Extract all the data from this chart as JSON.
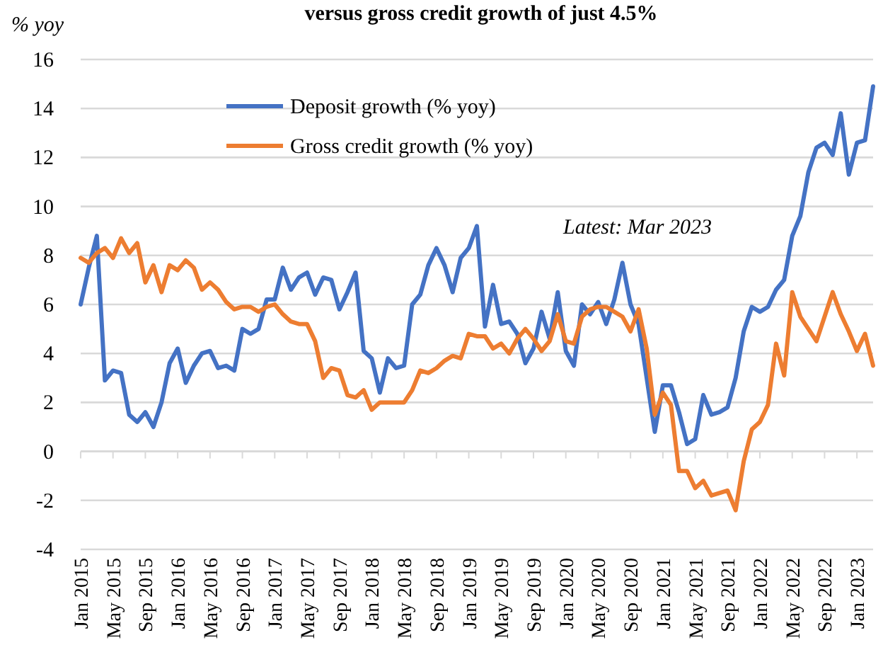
{
  "chart_data": {
    "type": "line",
    "title": "versus gross credit growth of just 4.5%",
    "ylabel": "% yoy",
    "categories": [
      "Jan 2015",
      null,
      null,
      null,
      "May 2015",
      null,
      null,
      null,
      "Sep 2015",
      null,
      null,
      null,
      "Jan 2016",
      null,
      null,
      null,
      "May 2016",
      null,
      null,
      null,
      "Sep 2016",
      null,
      null,
      null,
      "Jan 2017",
      null,
      null,
      null,
      "May 2017",
      null,
      null,
      null,
      "Sep 2017",
      null,
      null,
      null,
      "Jan 2018",
      null,
      null,
      null,
      "May 2018",
      null,
      null,
      null,
      "Sep 2018",
      null,
      null,
      null,
      "Jan 2019",
      null,
      null,
      null,
      "May 2019",
      null,
      null,
      null,
      "Sep 2019",
      null,
      null,
      null,
      "Jan 2020",
      null,
      null,
      null,
      "May 2020",
      null,
      null,
      null,
      "Sep 2020",
      null,
      null,
      null,
      "Jan 2021",
      null,
      null,
      null,
      "May 2021",
      null,
      null,
      null,
      "Sep 2021",
      null,
      null,
      null,
      "Jan 2022",
      null,
      null,
      null,
      "May 2022",
      null,
      null,
      null,
      "Sep 2022",
      null,
      null,
      null,
      "Jan 2023",
      null,
      null
    ],
    "series": [
      {
        "name": "Deposit growth (% yoy)",
        "color": "#4472c4",
        "values": [
          6.0,
          7.5,
          8.8,
          2.9,
          3.3,
          3.2,
          1.5,
          1.2,
          1.6,
          1.0,
          2.0,
          3.6,
          4.2,
          2.8,
          3.5,
          4.0,
          4.1,
          3.4,
          3.5,
          3.3,
          5.0,
          4.8,
          5.0,
          6.2,
          6.2,
          7.5,
          6.6,
          7.1,
          7.3,
          6.4,
          7.1,
          7.0,
          5.8,
          6.5,
          7.3,
          4.1,
          3.8,
          2.4,
          3.8,
          3.4,
          3.5,
          6.0,
          6.4,
          7.6,
          8.3,
          7.6,
          6.5,
          7.9,
          8.3,
          9.2,
          5.1,
          6.8,
          5.2,
          5.3,
          4.8,
          3.6,
          4.2,
          5.7,
          4.6,
          6.5,
          4.1,
          3.5,
          6.0,
          5.6,
          6.1,
          5.2,
          6.2,
          7.7,
          6.0,
          5.2,
          3.0,
          0.8,
          2.7,
          2.7,
          1.6,
          0.3,
          0.5,
          2.3,
          1.5,
          1.6,
          1.8,
          3.0,
          4.9,
          5.9,
          5.7,
          5.9,
          6.6,
          7.0,
          8.8,
          9.6,
          11.4,
          12.4,
          12.6,
          12.1,
          13.8,
          11.3,
          12.6,
          12.7,
          14.9
        ]
      },
      {
        "name": "Gross credit growth (% yoy)",
        "color": "#ed7d31",
        "values": [
          7.9,
          7.7,
          8.1,
          8.3,
          7.9,
          8.7,
          8.1,
          8.5,
          6.9,
          7.6,
          6.5,
          7.6,
          7.4,
          7.8,
          7.5,
          6.6,
          6.9,
          6.6,
          6.1,
          5.8,
          5.9,
          5.9,
          5.7,
          5.9,
          6.0,
          5.6,
          5.3,
          5.2,
          5.2,
          4.5,
          3.0,
          3.4,
          3.3,
          2.3,
          2.2,
          2.5,
          1.7,
          2.0,
          2.0,
          2.0,
          2.0,
          2.5,
          3.3,
          3.2,
          3.4,
          3.7,
          3.9,
          3.8,
          4.8,
          4.7,
          4.7,
          4.2,
          4.4,
          4.0,
          4.6,
          5.0,
          4.6,
          4.1,
          4.5,
          5.6,
          4.5,
          4.4,
          5.5,
          5.8,
          5.9,
          5.9,
          5.7,
          5.5,
          4.9,
          5.8,
          4.2,
          1.5,
          2.4,
          1.9,
          -0.8,
          -0.8,
          -1.5,
          -1.2,
          -1.8,
          -1.7,
          -1.6,
          -2.4,
          -0.4,
          0.9,
          1.2,
          1.9,
          4.4,
          3.1,
          6.5,
          5.5,
          5.0,
          4.5,
          5.5,
          6.5,
          5.6,
          4.9,
          4.1,
          4.8,
          3.5
        ]
      }
    ],
    "ylim": [
      -4,
      16
    ],
    "yticks": [
      -4,
      -2,
      0,
      2,
      4,
      6,
      8,
      10,
      12,
      14,
      16
    ],
    "grid": "y",
    "legend": "top",
    "annotations": [
      "Latest: Mar 2023"
    ]
  }
}
